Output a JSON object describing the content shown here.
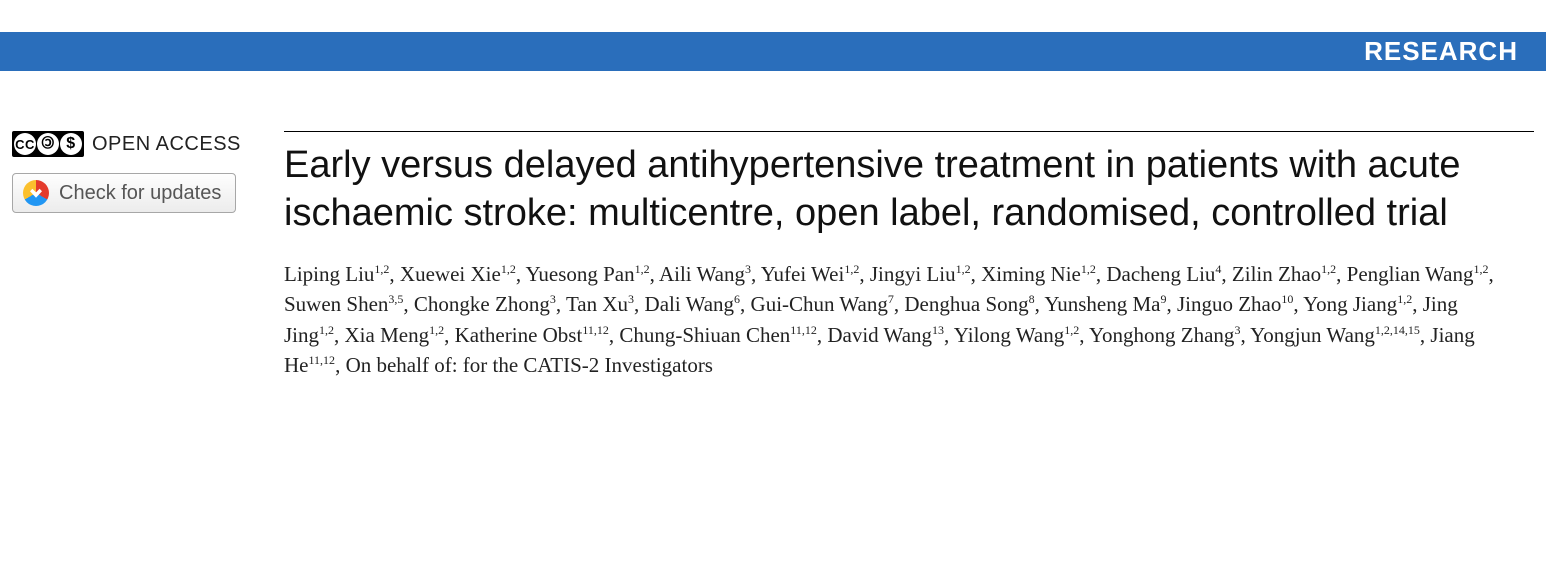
{
  "banner": {
    "label": "RESEARCH",
    "bg": "#2a6ebb",
    "fg": "#ffffff"
  },
  "sidebar": {
    "open_access_label": "OPEN ACCESS",
    "cc_text": "CC",
    "by_text": "🄯",
    "nc_text": "$",
    "check_updates_label": "Check for updates"
  },
  "article": {
    "title": "Early versus delayed antihypertensive treatment in patients with acute ischaemic stroke: multicentre, open label, randomised, controlled trial",
    "authors": [
      {
        "name": "Liping Liu",
        "affil": "1,2"
      },
      {
        "name": "Xuewei Xie",
        "affil": "1,2"
      },
      {
        "name": "Yuesong Pan",
        "affil": "1,2"
      },
      {
        "name": "Aili Wang",
        "affil": "3"
      },
      {
        "name": "Yufei Wei",
        "affil": "1,2"
      },
      {
        "name": "Jingyi Liu",
        "affil": "1,2"
      },
      {
        "name": "Ximing Nie",
        "affil": "1,2"
      },
      {
        "name": "Dacheng Liu",
        "affil": "4"
      },
      {
        "name": "Zilin Zhao",
        "affil": "1,2"
      },
      {
        "name": "Penglian Wang",
        "affil": "1,2"
      },
      {
        "name": "Suwen Shen",
        "affil": "3,5"
      },
      {
        "name": "Chongke Zhong",
        "affil": "3"
      },
      {
        "name": "Tan Xu",
        "affil": "3"
      },
      {
        "name": "Dali Wang",
        "affil": "6"
      },
      {
        "name": "Gui-Chun Wang",
        "affil": "7"
      },
      {
        "name": "Denghua Song",
        "affil": "8"
      },
      {
        "name": "Yunsheng Ma",
        "affil": "9"
      },
      {
        "name": "Jinguo Zhao",
        "affil": "10"
      },
      {
        "name": "Yong Jiang",
        "affil": "1,2"
      },
      {
        "name": "Jing Jing",
        "affil": "1,2"
      },
      {
        "name": "Xia Meng",
        "affil": "1,2"
      },
      {
        "name": "Katherine Obst",
        "affil": "11,12"
      },
      {
        "name": "Chung-Shiuan Chen",
        "affil": "11,12"
      },
      {
        "name": "David Wang",
        "affil": "13"
      },
      {
        "name": "Yilong Wang",
        "affil": "1,2"
      },
      {
        "name": "Yonghong Zhang",
        "affil": "3"
      },
      {
        "name": "Yongjun Wang",
        "affil": "1,2,14,15"
      },
      {
        "name": "Jiang He",
        "affil": "11,12"
      }
    ],
    "on_behalf": "On behalf of: for the CATIS-2 Investigators"
  },
  "style": {
    "title_fontsize": 38,
    "author_fontsize": 21,
    "banner_fontsize": 26,
    "text_color": "#222222",
    "rule_color": "#000000"
  }
}
